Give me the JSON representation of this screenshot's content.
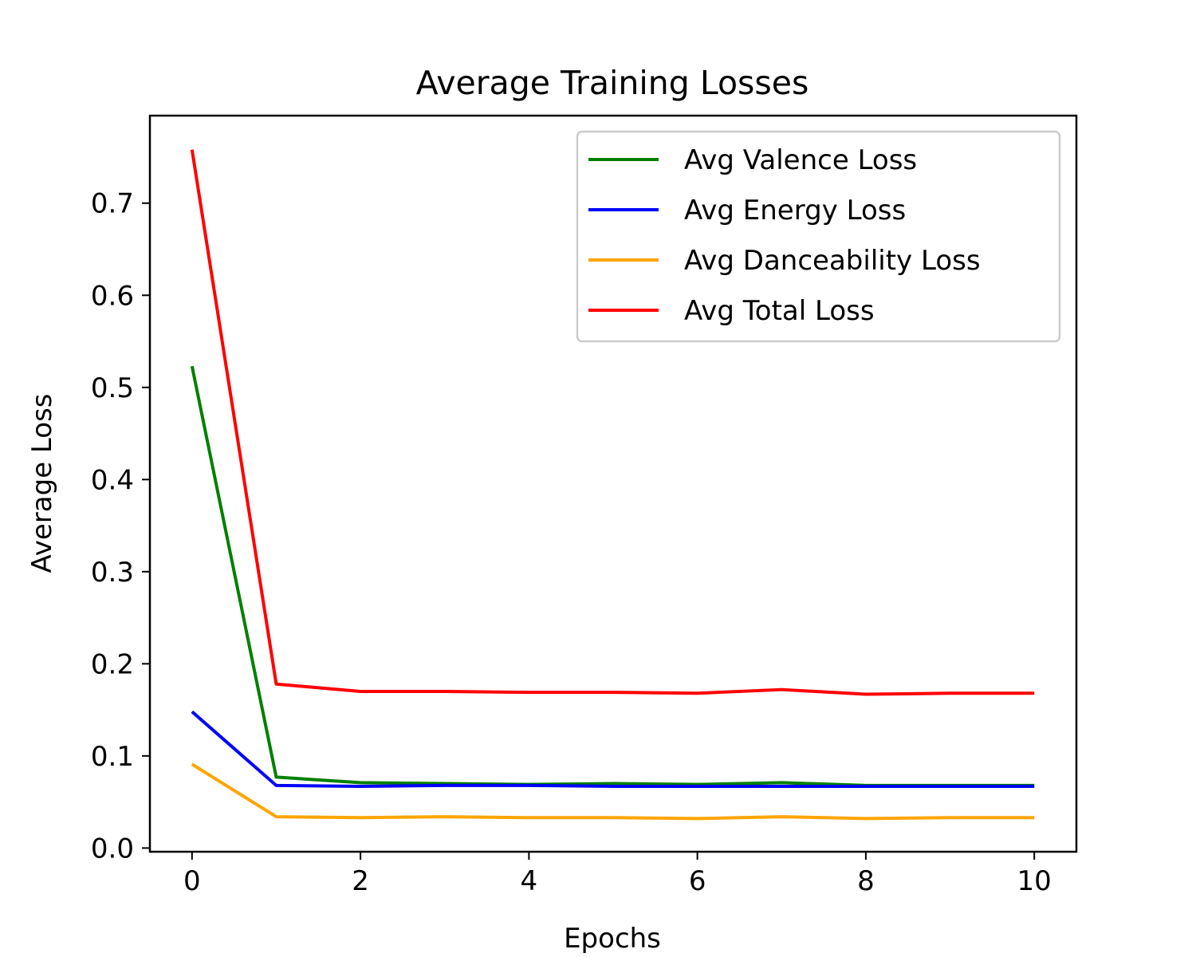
{
  "chart_data": {
    "type": "line",
    "title": "Average Training Losses",
    "xlabel": "Epochs",
    "ylabel": "Average Loss",
    "xlim": [
      -0.5,
      10.5
    ],
    "ylim": [
      -0.004,
      0.795
    ],
    "x_ticks": [
      0,
      2,
      4,
      6,
      8,
      10
    ],
    "y_ticks": [
      0.0,
      0.1,
      0.2,
      0.3,
      0.4,
      0.5,
      0.6,
      0.7
    ],
    "x_tick_labels": [
      "0",
      "2",
      "4",
      "6",
      "8",
      "10"
    ],
    "y_tick_labels": [
      "0.0",
      "0.1",
      "0.2",
      "0.3",
      "0.4",
      "0.5",
      "0.6",
      "0.7"
    ],
    "grid": false,
    "legend_position": "top-right",
    "x": [
      0,
      1,
      2,
      3,
      4,
      5,
      6,
      7,
      8,
      9,
      10
    ],
    "series": [
      {
        "name": "Avg Valence Loss",
        "color": "#008000",
        "values": [
          0.523,
          0.077,
          0.071,
          0.07,
          0.069,
          0.07,
          0.069,
          0.071,
          0.068,
          0.068,
          0.068
        ]
      },
      {
        "name": "Avg Energy Loss",
        "color": "#0000ff",
        "values": [
          0.148,
          0.068,
          0.067,
          0.068,
          0.068,
          0.067,
          0.067,
          0.067,
          0.067,
          0.067,
          0.067
        ]
      },
      {
        "name": "Avg Danceability Loss",
        "color": "#ffa500",
        "values": [
          0.091,
          0.034,
          0.033,
          0.034,
          0.033,
          0.033,
          0.032,
          0.034,
          0.032,
          0.033,
          0.033
        ]
      },
      {
        "name": "Avg Total Loss",
        "color": "#ff0000",
        "values": [
          0.758,
          0.178,
          0.17,
          0.17,
          0.169,
          0.169,
          0.168,
          0.172,
          0.167,
          0.168,
          0.168
        ]
      }
    ]
  }
}
